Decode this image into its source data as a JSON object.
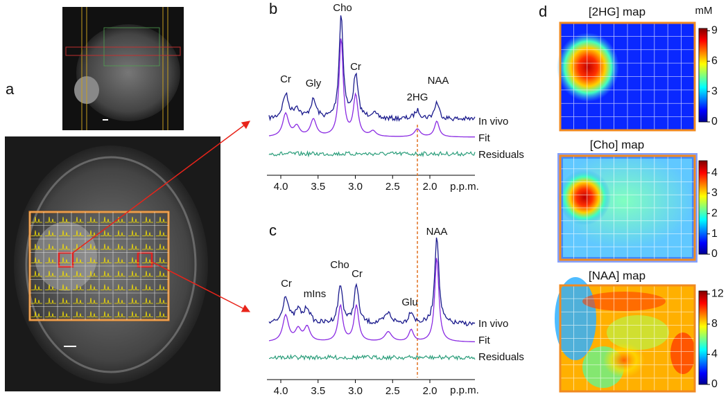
{
  "panel_a": {
    "label": "a"
  },
  "panel_b": {
    "label": "b",
    "peaks": [
      "Cr",
      "Gly",
      "Cho",
      "Cr",
      "2HG",
      "NAA"
    ],
    "traces": [
      "In vivo",
      "Fit",
      "Residuals"
    ],
    "ticks": [
      "4.0",
      "3.5",
      "3.0",
      "2.5",
      "2.0"
    ],
    "unit": "p.p.m."
  },
  "panel_c": {
    "label": "c",
    "peaks": [
      "Cr",
      "mIns",
      "Cho",
      "Cr",
      "Glu",
      "NAA"
    ],
    "traces": [
      "In vivo",
      "Fit",
      "Residuals"
    ],
    "ticks": [
      "4.0",
      "3.5",
      "3.0",
      "2.5",
      "2.0"
    ],
    "unit": "p.p.m."
  },
  "panel_d": {
    "label": "d",
    "unit": "mM",
    "maps": [
      {
        "title": "[2HG] map",
        "ticks": [
          "9",
          "6",
          "3",
          "0"
        ]
      },
      {
        "title": "[Cho] map",
        "ticks": [
          "4",
          "3",
          "2",
          "1",
          "0"
        ]
      },
      {
        "title": "[NAA] map",
        "ticks": [
          "12",
          "8",
          "4",
          "0"
        ]
      }
    ]
  }
}
